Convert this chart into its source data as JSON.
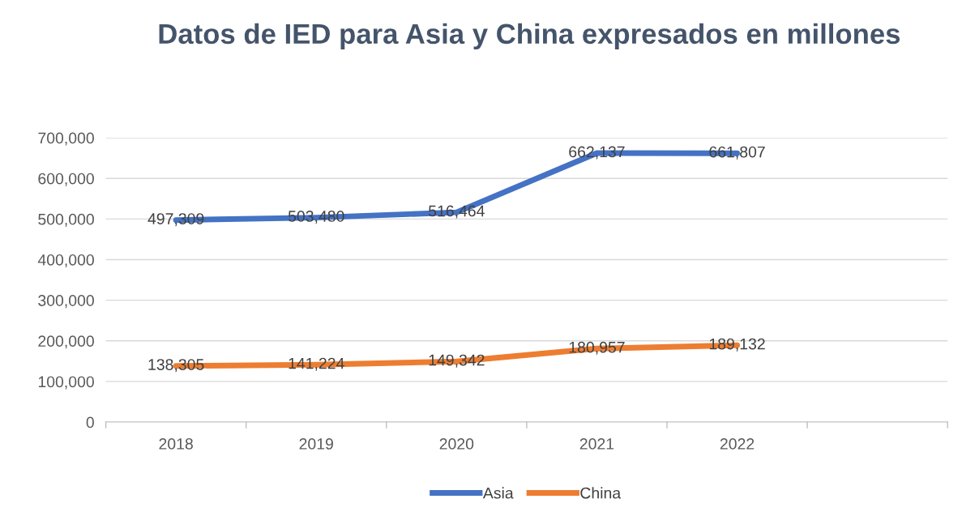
{
  "chart_data": {
    "type": "line",
    "title": "Datos de IED para Asia y China expresados en millones",
    "categories": [
      "2018",
      "2019",
      "2020",
      "2021",
      "2022",
      null
    ],
    "series": [
      {
        "name": "Asia",
        "color": "#4472c4",
        "values": [
          497309,
          503480,
          516464,
          662137,
          661807,
          null
        ],
        "value_labels": [
          "497,309",
          "503,480",
          "516,464",
          "662,137",
          "661,807",
          null
        ]
      },
      {
        "name": "China",
        "color": "#ed7d31",
        "values": [
          138305,
          141224,
          149342,
          180957,
          189132,
          null
        ],
        "value_labels": [
          "138,305",
          "141,224",
          "149,342",
          "180,957",
          "189,132",
          null
        ]
      }
    ],
    "ylim": [
      0,
      700000
    ],
    "yticks": [
      {
        "value": 0,
        "label": "0"
      },
      {
        "value": 100000,
        "label": "100,000"
      },
      {
        "value": 200000,
        "label": "200,000"
      },
      {
        "value": 300000,
        "label": "300,000"
      },
      {
        "value": 400000,
        "label": "400,000"
      },
      {
        "value": 500000,
        "label": "500,000"
      },
      {
        "value": 600000,
        "label": "600,000"
      },
      {
        "value": 700000,
        "label": "700,000"
      }
    ],
    "grid": "y",
    "legend": "bottom",
    "marker": "none",
    "line_style": "solid"
  }
}
